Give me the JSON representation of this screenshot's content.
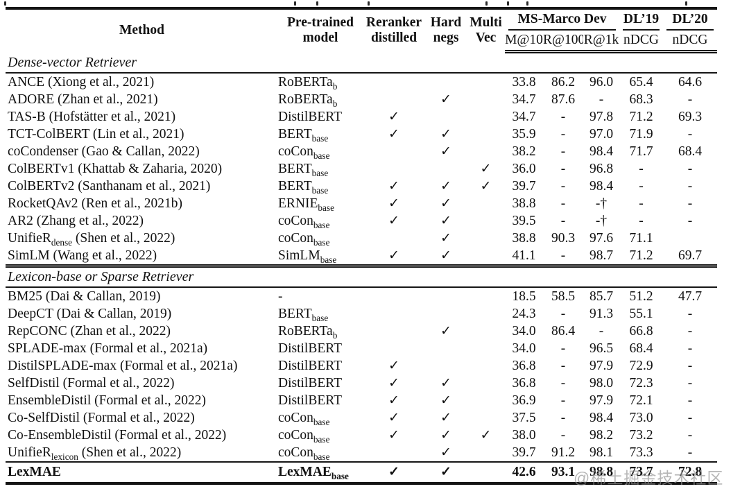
{
  "page": {
    "background": "#ffffff",
    "text_color": "#111111",
    "rule_color": "#151515"
  },
  "watermark": {
    "text": "@稀土掘金技术社区",
    "color": "#949494"
  },
  "table": {
    "check_glyph": "✓",
    "dash": "-",
    "header": {
      "col_method": "Method",
      "col_pretrained_l1": "Pre-trained",
      "col_pretrained_l2": "model",
      "col_reranker_l1": "Reranker",
      "col_reranker_l2": "distilled",
      "col_hard_l1": "Hard",
      "col_hard_l2": "negs",
      "col_multi_l1": "Multi",
      "col_multi_l2": "Vec",
      "group_msmarco": "MS-Marco Dev",
      "group_dl19": "DL’19",
      "group_dl20": "DL’20",
      "sub_m10": "M@10",
      "sub_r100": "R@100",
      "sub_r1k": "R@1k",
      "sub_ndcg19": "nDCG",
      "sub_ndcg20": "nDCG"
    },
    "sections": [
      {
        "title": "Dense-vector Retriever",
        "rows": [
          {
            "method": "ANCE (Xiong et al., 2021)",
            "model": "RoBERTa~b~",
            "reranker": false,
            "hard": false,
            "multi": false,
            "m10": "33.8",
            "r100": "86.2",
            "r1k": "96.0",
            "dl19": "65.4",
            "dl20": "64.6"
          },
          {
            "method": "ADORE (Zhan et al., 2021)",
            "model": "RoBERTa~b~",
            "reranker": false,
            "hard": true,
            "multi": false,
            "m10": "34.7",
            "r100": "87.6",
            "r1k": "-",
            "dl19": "68.3",
            "dl20": "-"
          },
          {
            "method": "TAS-B (Hofstätter et al., 2021)",
            "model": "DistilBERT",
            "reranker": true,
            "hard": false,
            "multi": false,
            "m10": "34.7",
            "r100": "-",
            "r1k": "97.8",
            "dl19": "71.2",
            "dl20": "69.3"
          },
          {
            "method": "TCT-ColBERT (Lin et al., 2021)",
            "model": "BERT~base~",
            "reranker": true,
            "hard": true,
            "multi": false,
            "m10": "35.9",
            "r100": "-",
            "r1k": "97.0",
            "dl19": "71.9",
            "dl20": "-"
          },
          {
            "method": "coCondenser (Gao & Callan, 2022)",
            "model": "coCon~base~",
            "reranker": false,
            "hard": true,
            "multi": false,
            "m10": "38.2",
            "r100": "-",
            "r1k": "98.4",
            "dl19": "71.7",
            "dl20": "68.4"
          },
          {
            "method": "ColBERTv1 (Khattab & Zaharia, 2020)",
            "model": "BERT~base~",
            "reranker": false,
            "hard": false,
            "multi": true,
            "m10": "36.0",
            "r100": "-",
            "r1k": "96.8",
            "dl19": "-",
            "dl20": "-"
          },
          {
            "method": "ColBERTv2 (Santhanam et al., 2021)",
            "model": "BERT~base~",
            "reranker": true,
            "hard": true,
            "multi": true,
            "m10": "39.7",
            "r100": "-",
            "r1k": "98.4",
            "dl19": "-",
            "dl20": "-"
          },
          {
            "method": "RocketQAv2 (Ren et al., 2021b)",
            "model": "ERNIE~base~",
            "reranker": true,
            "hard": true,
            "multi": false,
            "m10": "38.8",
            "r100": "-",
            "r1k": "-†",
            "dl19": "-",
            "dl20": "-"
          },
          {
            "method": "AR2 (Zhang et al., 2022)",
            "model": "coCon~base~",
            "reranker": true,
            "hard": true,
            "multi": false,
            "m10": "39.5",
            "r100": "-",
            "r1k": "-†",
            "dl19": "-",
            "dl20": "-"
          },
          {
            "method": "UnifieR~dense~ (Shen et al., 2022)",
            "model": "coCon~base~",
            "reranker": false,
            "hard": true,
            "multi": false,
            "m10": "38.8",
            "r100": "90.3",
            "r1k": "97.6",
            "dl19": "71.1",
            "dl20": ""
          },
          {
            "method": "SimLM (Wang et al., 2022)",
            "model": "SimLM~base~",
            "reranker": true,
            "hard": true,
            "multi": false,
            "m10": "41.1",
            "r100": "-",
            "r1k": "98.7",
            "dl19": "71.2",
            "dl20": "69.7"
          }
        ]
      },
      {
        "title": "Lexicon-base or Sparse Retriever",
        "rows": [
          {
            "method": "BM25 (Dai & Callan, 2019)",
            "model": "-",
            "reranker": false,
            "hard": false,
            "multi": false,
            "m10": "18.5",
            "r100": "58.5",
            "r1k": "85.7",
            "dl19": "51.2",
            "dl20": "47.7"
          },
          {
            "method": "DeepCT (Dai & Callan, 2019)",
            "model": "BERT~base~",
            "reranker": false,
            "hard": false,
            "multi": false,
            "m10": "24.3",
            "r100": "-",
            "r1k": "91.3",
            "dl19": "55.1",
            "dl20": "-"
          },
          {
            "method": "RepCONC (Zhan et al., 2022)",
            "model": "RoBERTa~b~",
            "reranker": false,
            "hard": true,
            "multi": false,
            "m10": "34.0",
            "r100": "86.4",
            "r1k": "-",
            "dl19": "66.8",
            "dl20": "-"
          },
          {
            "method": "SPLADE-max (Formal et al., 2021a)",
            "model": "DistilBERT",
            "reranker": false,
            "hard": false,
            "multi": false,
            "m10": "34.0",
            "r100": "-",
            "r1k": "96.5",
            "dl19": "68.4",
            "dl20": "-"
          },
          {
            "method": "DistilSPLADE-max (Formal et al., 2021a)",
            "model": "DistilBERT",
            "reranker": true,
            "hard": false,
            "multi": false,
            "m10": "36.8",
            "r100": "-",
            "r1k": "97.9",
            "dl19": "72.9",
            "dl20": "-"
          },
          {
            "method": "SelfDistil (Formal et al., 2022)",
            "model": "DistilBERT",
            "reranker": true,
            "hard": true,
            "multi": false,
            "m10": "36.8",
            "r100": "-",
            "r1k": "98.0",
            "dl19": "72.3",
            "dl20": "-"
          },
          {
            "method": "EnsembleDistil (Formal et al., 2022)",
            "model": "DistilBERT",
            "reranker": true,
            "hard": true,
            "multi": false,
            "m10": "36.9",
            "r100": "-",
            "r1k": "97.9",
            "dl19": "72.1",
            "dl20": "-"
          },
          {
            "method": "Co-SelfDistil (Formal et al., 2022)",
            "model": "coCon~base~",
            "reranker": true,
            "hard": true,
            "multi": false,
            "m10": "37.5",
            "r100": "-",
            "r1k": "98.4",
            "dl19": "73.0",
            "dl20": "-"
          },
          {
            "method": "Co-EnsembleDistil (Formal et al., 2022)",
            "model": "coCon~base~",
            "reranker": true,
            "hard": true,
            "multi": true,
            "m10": "38.0",
            "r100": "-",
            "r1k": "98.2",
            "dl19": "73.2",
            "dl20": "-"
          },
          {
            "method": "UnifieR~lexicon~ (Shen et al., 2022)",
            "model": "coCon~base~",
            "reranker": false,
            "hard": true,
            "multi": false,
            "m10": "39.7",
            "r100": "91.2",
            "r1k": "98.1",
            "dl19": "73.3",
            "dl20": "-"
          },
          {
            "method": "LexMAE",
            "model": "LexMAE~base~",
            "reranker": true,
            "hard": true,
            "multi": false,
            "m10": "42.6",
            "r100": "93.1",
            "r1k": "98.8",
            "dl19": "73.7",
            "dl20": "72.8",
            "bold": true
          }
        ]
      }
    ]
  }
}
